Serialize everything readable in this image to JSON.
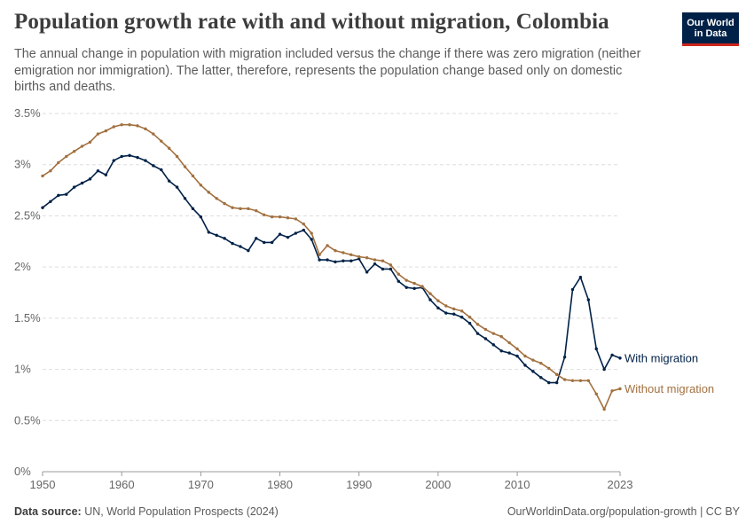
{
  "title": "Population growth rate with and without migration, Colombia",
  "subtitle": "The annual change in population with migration included versus the change if there was zero migration (neither emigration nor immigration). The latter, therefore, represents the population change based only on domestic births and deaths.",
  "logo": {
    "line1": "Our World",
    "line2": "in Data"
  },
  "footer": {
    "source_label": "Data source:",
    "source_text": " UN, World Population Prospects (2024)",
    "url": "OurWorldinData.org/population-growth | CC BY"
  },
  "chart_data": {
    "type": "line",
    "x": [
      1950,
      1951,
      1952,
      1953,
      1954,
      1955,
      1956,
      1957,
      1958,
      1959,
      1960,
      1961,
      1962,
      1963,
      1964,
      1965,
      1966,
      1967,
      1968,
      1969,
      1970,
      1971,
      1972,
      1973,
      1974,
      1975,
      1976,
      1977,
      1978,
      1979,
      1980,
      1981,
      1982,
      1983,
      1984,
      1985,
      1986,
      1987,
      1988,
      1989,
      1990,
      1991,
      1992,
      1993,
      1994,
      1995,
      1996,
      1997,
      1998,
      1999,
      2000,
      2001,
      2002,
      2003,
      2004,
      2005,
      2006,
      2007,
      2008,
      2009,
      2010,
      2011,
      2012,
      2013,
      2014,
      2015,
      2016,
      2017,
      2018,
      2019,
      2020,
      2021,
      2022,
      2023
    ],
    "series": [
      {
        "name": "With migration",
        "color": "#002147",
        "values": [
          2.58,
          2.64,
          2.7,
          2.71,
          2.78,
          2.82,
          2.86,
          2.94,
          2.9,
          3.04,
          3.08,
          3.09,
          3.07,
          3.04,
          2.99,
          2.95,
          2.84,
          2.78,
          2.67,
          2.57,
          2.49,
          2.34,
          2.31,
          2.28,
          2.23,
          2.2,
          2.16,
          2.28,
          2.24,
          2.24,
          2.32,
          2.29,
          2.33,
          2.36,
          2.27,
          2.07,
          2.07,
          2.05,
          2.06,
          2.06,
          2.08,
          1.95,
          2.03,
          1.98,
          1.98,
          1.86,
          1.8,
          1.79,
          1.8,
          1.68,
          1.6,
          1.55,
          1.54,
          1.51,
          1.45,
          1.35,
          1.3,
          1.24,
          1.18,
          1.16,
          1.13,
          1.04,
          0.98,
          0.92,
          0.87,
          0.87,
          1.12,
          1.78,
          1.9,
          1.68,
          1.2,
          1.0,
          1.14,
          1.11
        ]
      },
      {
        "name": "Without migration",
        "color": "#a2703f",
        "values": [
          2.89,
          2.94,
          3.02,
          3.08,
          3.13,
          3.18,
          3.22,
          3.3,
          3.33,
          3.37,
          3.39,
          3.39,
          3.38,
          3.35,
          3.3,
          3.23,
          3.16,
          3.08,
          2.98,
          2.89,
          2.8,
          2.73,
          2.67,
          2.62,
          2.58,
          2.57,
          2.57,
          2.55,
          2.51,
          2.49,
          2.49,
          2.48,
          2.47,
          2.42,
          2.33,
          2.12,
          2.21,
          2.16,
          2.14,
          2.12,
          2.1,
          2.09,
          2.07,
          2.06,
          2.02,
          1.93,
          1.87,
          1.84,
          1.81,
          1.74,
          1.67,
          1.62,
          1.59,
          1.57,
          1.51,
          1.44,
          1.39,
          1.35,
          1.32,
          1.26,
          1.2,
          1.13,
          1.09,
          1.06,
          1.01,
          0.95,
          0.9,
          0.89,
          0.89,
          0.89,
          0.76,
          0.61,
          0.79,
          0.81
        ]
      }
    ],
    "ylim": [
      0,
      3.5
    ],
    "y_ticks": [
      {
        "v": 0,
        "label": "0%"
      },
      {
        "v": 0.5,
        "label": "0.5%"
      },
      {
        "v": 1,
        "label": "1%"
      },
      {
        "v": 1.5,
        "label": "1.5%"
      },
      {
        "v": 2,
        "label": "2%"
      },
      {
        "v": 2.5,
        "label": "2.5%"
      },
      {
        "v": 3,
        "label": "3%"
      },
      {
        "v": 3.5,
        "label": "3.5%"
      }
    ],
    "x_ticks": [
      {
        "v": 1950,
        "label": "1950"
      },
      {
        "v": 1960,
        "label": "1960"
      },
      {
        "v": 1970,
        "label": "1970"
      },
      {
        "v": 1980,
        "label": "1980"
      },
      {
        "v": 1990,
        "label": "1990"
      },
      {
        "v": 2000,
        "label": "2000"
      },
      {
        "v": 2010,
        "label": "2010"
      },
      {
        "v": 2023,
        "label": "2023"
      }
    ],
    "grid": true,
    "legend": "right"
  }
}
